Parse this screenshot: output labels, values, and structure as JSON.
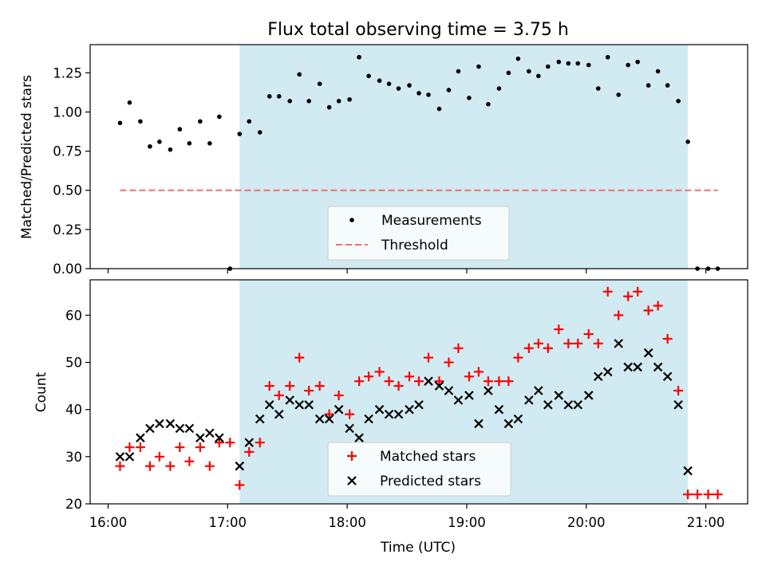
{
  "figure": {
    "title": "Flux total observing time = 3.75 h",
    "xlabel": "Time (UTC)",
    "x_ticks": [
      "16:00",
      "17:00",
      "18:00",
      "19:00",
      "20:00",
      "21:00"
    ]
  },
  "colors": {
    "measurement": "#000000",
    "threshold": "#f07070",
    "matched": "#ff0000",
    "predicted": "#000000",
    "highlight": "#add8e6"
  },
  "chart_data": [
    {
      "type": "scatter",
      "ylabel": "Matched/Predicted stars",
      "ylim": [
        0,
        1.43
      ],
      "y_ticks": [
        "0.00",
        "0.25",
        "0.50",
        "0.75",
        "1.00",
        "1.25"
      ],
      "highlight_span_hours": [
        17.1,
        20.85
      ],
      "legend": {
        "position": "lower-center",
        "measurements": "Measurements",
        "threshold": "Threshold"
      },
      "threshold": {
        "value": 0.5,
        "x_range_hours": [
          16.1,
          21.1
        ]
      },
      "x_hours": [
        16.1,
        16.18,
        16.27,
        16.35,
        16.43,
        16.52,
        16.6,
        16.68,
        16.77,
        16.85,
        16.93,
        17.02,
        17.1,
        17.18,
        17.27,
        17.35,
        17.43,
        17.52,
        17.6,
        17.68,
        17.77,
        17.85,
        17.93,
        18.02,
        18.1,
        18.18,
        18.27,
        18.35,
        18.43,
        18.52,
        18.6,
        18.68,
        18.77,
        18.85,
        18.93,
        19.02,
        19.1,
        19.18,
        19.27,
        19.35,
        19.43,
        19.52,
        19.6,
        19.68,
        19.77,
        19.85,
        19.93,
        20.02,
        20.1,
        20.18,
        20.27,
        20.35,
        20.43,
        20.52,
        20.6,
        20.68,
        20.77,
        20.85,
        20.93,
        21.02,
        21.1
      ],
      "values": [
        0.93,
        1.06,
        0.94,
        0.78,
        0.81,
        0.76,
        0.89,
        0.8,
        0.94,
        0.8,
        0.97,
        0.0,
        0.86,
        0.94,
        0.87,
        1.1,
        1.1,
        1.07,
        1.24,
        1.07,
        1.18,
        1.03,
        1.07,
        1.08,
        1.35,
        1.23,
        1.2,
        1.18,
        1.15,
        1.17,
        1.12,
        1.11,
        1.02,
        1.14,
        1.26,
        1.09,
        1.29,
        1.05,
        1.15,
        1.25,
        1.34,
        1.26,
        1.23,
        1.29,
        1.32,
        1.31,
        1.31,
        1.3,
        1.15,
        1.35,
        1.11,
        1.3,
        1.32,
        1.17,
        1.26,
        1.17,
        1.07,
        0.81,
        0.0,
        0.0,
        0.0
      ]
    },
    {
      "type": "scatter",
      "ylabel": "Count",
      "ylim": [
        20,
        67.5
      ],
      "y_ticks": [
        "20",
        "30",
        "40",
        "50",
        "60"
      ],
      "highlight_span_hours": [
        17.1,
        20.85
      ],
      "legend": {
        "position": "lower-center"
      },
      "x_hours": [
        16.1,
        16.18,
        16.27,
        16.35,
        16.43,
        16.52,
        16.6,
        16.68,
        16.77,
        16.85,
        16.93,
        17.02,
        17.1,
        17.18,
        17.27,
        17.35,
        17.43,
        17.52,
        17.6,
        17.68,
        17.77,
        17.85,
        17.93,
        18.02,
        18.1,
        18.18,
        18.27,
        18.35,
        18.43,
        18.52,
        18.6,
        18.68,
        18.77,
        18.85,
        18.93,
        19.02,
        19.1,
        19.18,
        19.27,
        19.35,
        19.43,
        19.52,
        19.6,
        19.68,
        19.77,
        19.85,
        19.93,
        20.02,
        20.1,
        20.18,
        20.27,
        20.35,
        20.43,
        20.52,
        20.6,
        20.68,
        20.77,
        20.85,
        20.93,
        21.02,
        21.1
      ],
      "series": [
        {
          "name": "Matched stars",
          "marker": "plus",
          "values": [
            28,
            32,
            32,
            28,
            30,
            28,
            32,
            29,
            32,
            28,
            33,
            33,
            24,
            31,
            33,
            45,
            43,
            45,
            51,
            44,
            45,
            39,
            43,
            39,
            46,
            47,
            48,
            46,
            45,
            47,
            46,
            51,
            46,
            50,
            53,
            47,
            48,
            46,
            46,
            46,
            51,
            53,
            54,
            53,
            57,
            54,
            54,
            56,
            54,
            65,
            60,
            64,
            65,
            61,
            62,
            55,
            44,
            22,
            22,
            22,
            22
          ]
        },
        {
          "name": "Predicted stars",
          "marker": "x",
          "values": [
            30,
            30,
            34,
            36,
            37,
            37,
            36,
            36,
            34,
            35,
            34,
            null,
            28,
            33,
            38,
            41,
            39,
            42,
            41,
            41,
            38,
            38,
            40,
            36,
            34,
            38,
            40,
            39,
            39,
            40,
            41,
            46,
            45,
            44,
            42,
            43,
            37,
            44,
            40,
            37,
            38,
            42,
            44,
            41,
            43,
            41,
            41,
            43,
            47,
            48,
            54,
            49,
            49,
            52,
            49,
            47,
            41,
            27,
            null,
            null,
            null
          ]
        }
      ]
    }
  ]
}
